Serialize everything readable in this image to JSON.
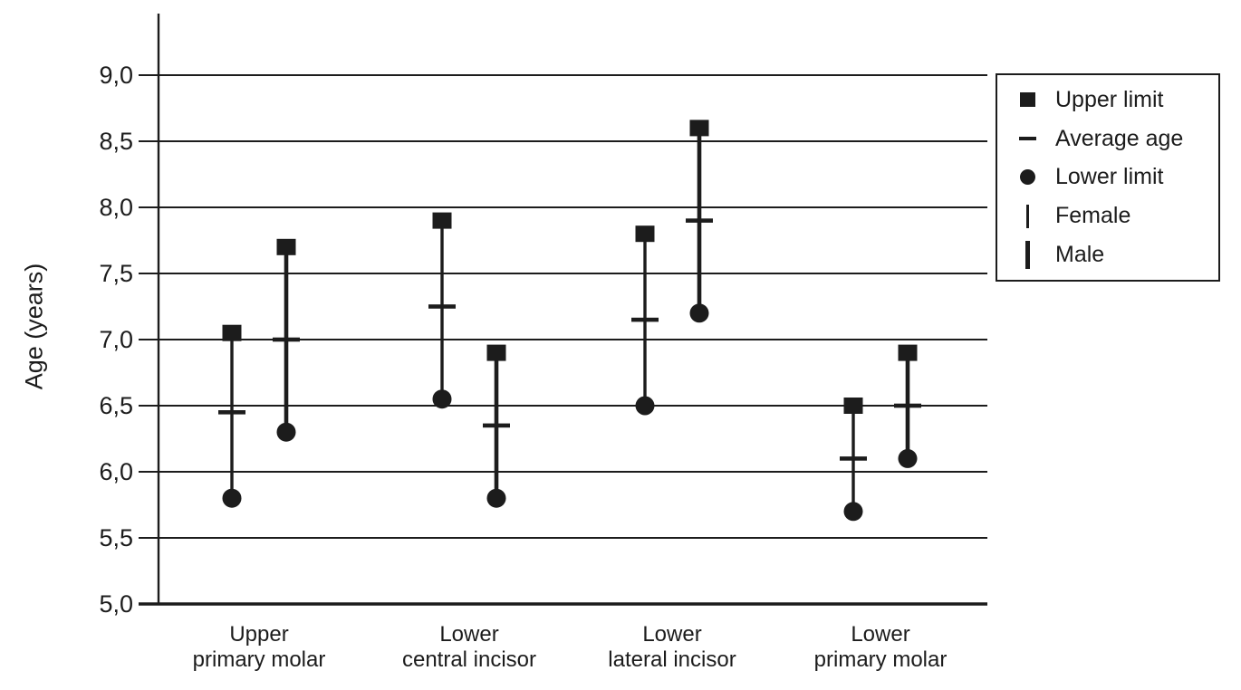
{
  "figure": {
    "background": "#ffffff",
    "ink_color": "#1c1c1c"
  },
  "legend": {
    "items": [
      {
        "marker": "square-icon",
        "label": "Upper limit"
      },
      {
        "marker": "dash-icon",
        "label": "Average age"
      },
      {
        "marker": "circle-icon",
        "label": "Lower limit"
      },
      {
        "marker": "thin-vertical-line-icon",
        "label": "Female"
      },
      {
        "marker": "thick-vertical-line-icon",
        "label": "Male"
      }
    ]
  },
  "chart_data": {
    "type": "scatter",
    "subtype": "vertical-range-interval",
    "title": "",
    "xlabel": "",
    "ylabel": "Age (years)",
    "ylim": [
      5.0,
      9.0
    ],
    "yticks": [
      9.0,
      8.5,
      8.0,
      7.5,
      7.0,
      6.5,
      6.0,
      5.5,
      5.0
    ],
    "ytick_labels": [
      "9,0",
      "8,5",
      "8,0",
      "7,5",
      "7,0",
      "6,5",
      "6,0",
      "5,5",
      "5,0"
    ],
    "decimal_separator": ",",
    "grid": true,
    "legend_position": "outside-upper-right",
    "categories": [
      "Upper primary molar",
      "Lower central incisor",
      "Lower lateral incisor",
      "Lower primary molar"
    ],
    "category_label_lines": [
      [
        "Upper",
        "primary molar"
      ],
      [
        "Lower",
        "central incisor"
      ],
      [
        "Lower",
        "lateral incisor"
      ],
      [
        "Lower",
        "primary molar"
      ]
    ],
    "series": [
      {
        "name": "Female",
        "line_weight": "thin",
        "upper_limit": [
          7.05,
          7.9,
          7.8,
          6.5
        ],
        "average_age": [
          6.45,
          7.25,
          7.15,
          6.1
        ],
        "lower_limit": [
          5.8,
          6.55,
          6.5,
          5.7
        ]
      },
      {
        "name": "Male",
        "line_weight": "thick",
        "upper_limit": [
          7.7,
          6.9,
          8.6,
          6.9
        ],
        "average_age": [
          7.0,
          6.35,
          7.9,
          6.5
        ],
        "lower_limit": [
          6.3,
          5.8,
          7.2,
          6.1
        ]
      }
    ]
  }
}
